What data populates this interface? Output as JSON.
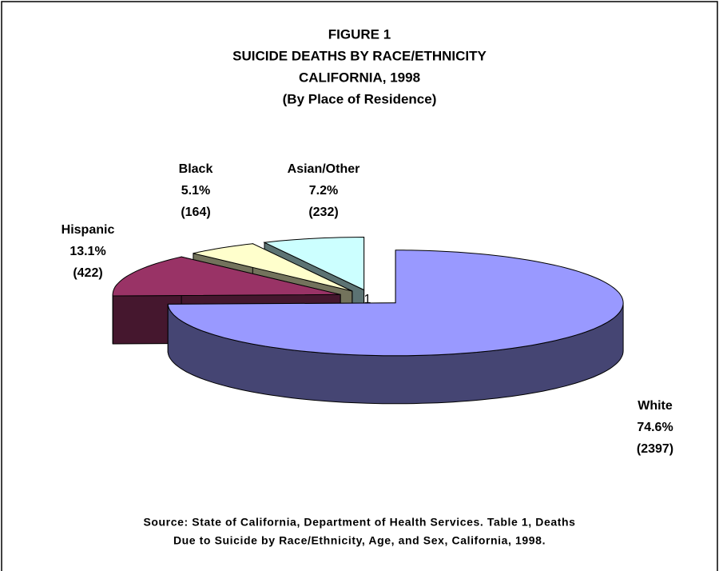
{
  "chart_data": {
    "type": "pie",
    "title": [
      "FIGURE 1",
      "SUICIDE DEATHS BY RACE/ETHNICITY",
      "CALIFORNIA, 1998",
      "(By Place of Residence)"
    ],
    "categories": [
      "White",
      "Hispanic",
      "Black",
      "Asian/Other"
    ],
    "values": [
      74.6,
      13.1,
      5.1,
      7.2
    ],
    "value_labels": [
      "74.6%",
      "13.1%",
      "5.1%",
      "7.2%"
    ],
    "counts": [
      2397,
      422,
      164,
      232
    ],
    "count_labels": [
      "(2397)",
      "(422)",
      "(164)",
      "(232)"
    ],
    "colors": [
      "#9999ff",
      "#993366",
      "#ffffcc",
      "#ccffff"
    ],
    "annotation": "1",
    "source": [
      "Source: State of California, Department of Health Services.  Table 1,  Deaths",
      "Due to Suicide by Race/Ethnicity, Age, and Sex, California, 1998."
    ]
  }
}
